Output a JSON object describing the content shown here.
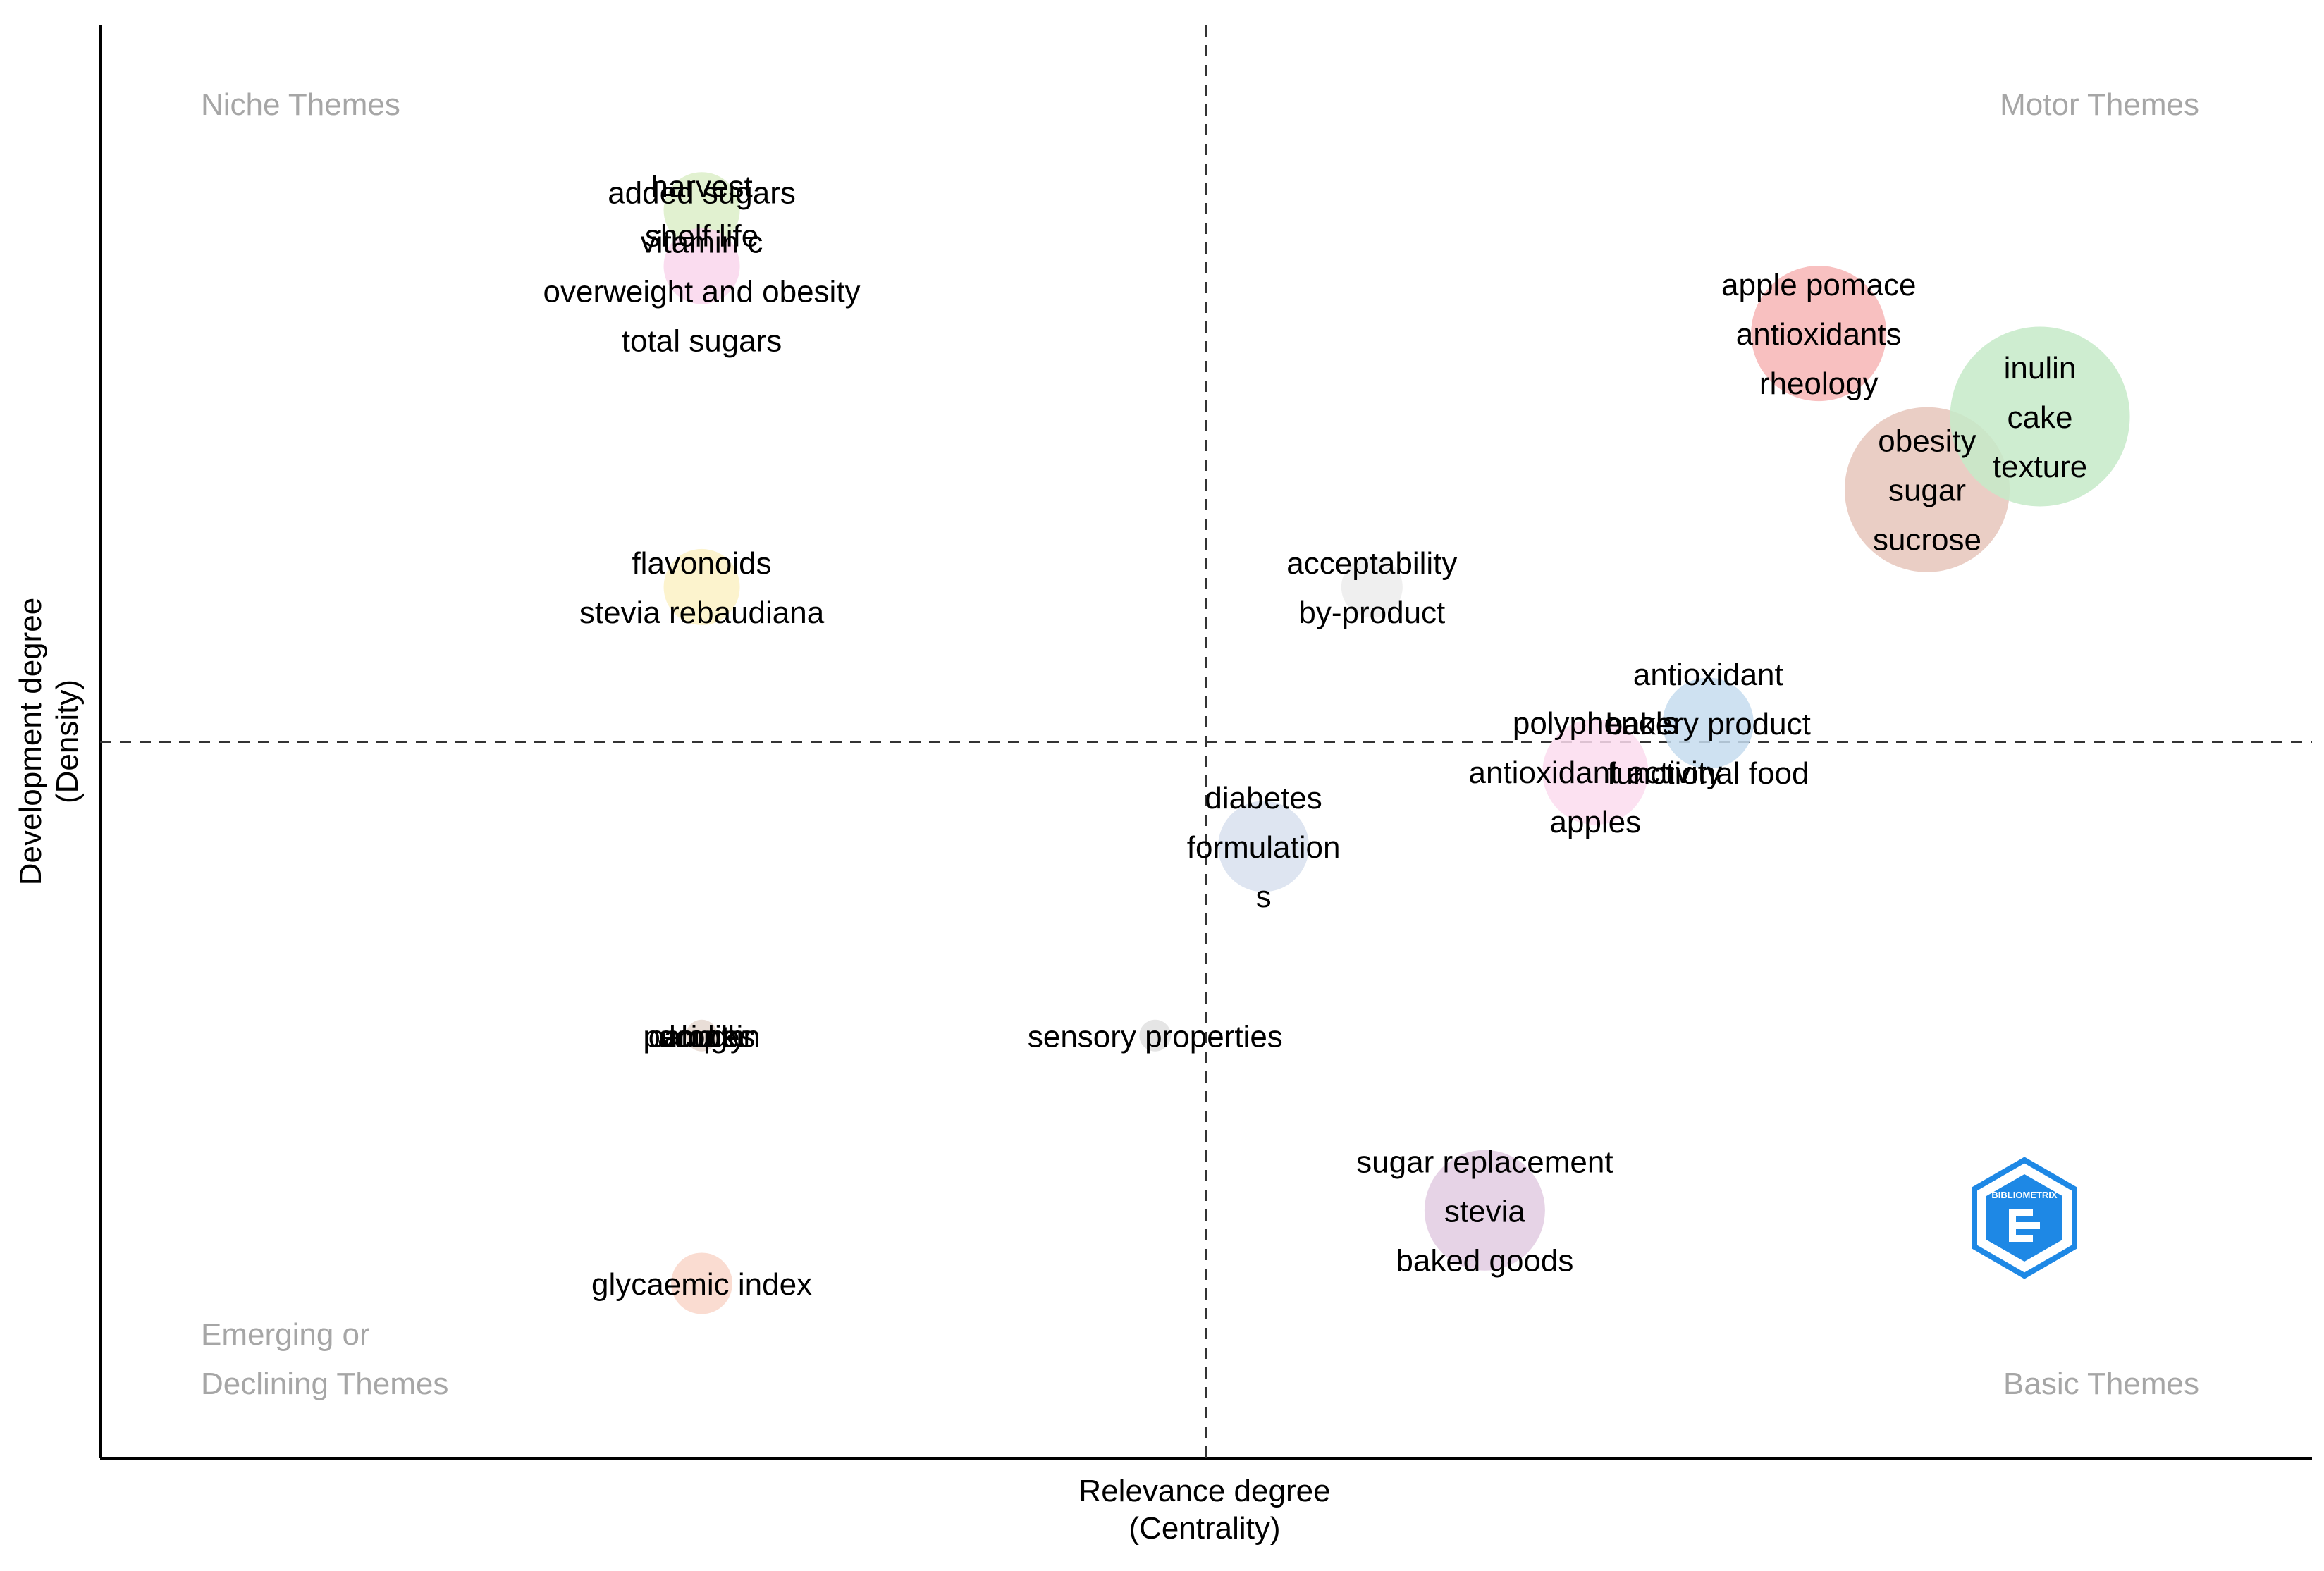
{
  "chart_data": {
    "type": "scatter",
    "subtype": "thematic-map-bubble",
    "xlabel": "Relevance degree",
    "xlabel_sub": "(Centrality)",
    "ylabel": "Development degree",
    "ylabel_sub": "(Density)",
    "xlim": [
      0,
      100
    ],
    "ylim": [
      0,
      100
    ],
    "x_divider": 50,
    "y_divider": 50,
    "grid": false,
    "quadrant_labels": {
      "top_left": [
        "Niche Themes"
      ],
      "top_right": [
        "Motor Themes"
      ],
      "bottom_left": [
        "Emerging or",
        "Declining Themes"
      ],
      "bottom_right": [
        "Basic Themes"
      ]
    },
    "logo_text": "BIBLIOMETRIX",
    "clusters": [
      {
        "x": 27.2,
        "y": 87.1,
        "size": 4,
        "color": "#dcefc8",
        "labels": [
          "harvest",
          "shelf life"
        ]
      },
      {
        "x": 27.2,
        "y": 83.2,
        "size": 4,
        "color": "#f9d6ec",
        "labels": [
          "added sugars",
          "vitamin c",
          "overweight and obesity",
          "total sugars"
        ]
      },
      {
        "x": 27.2,
        "y": 60.8,
        "size": 4,
        "color": "#fbf1c4",
        "labels": [
          "flavonoids",
          "stevia rebaudiana"
        ]
      },
      {
        "x": 27.2,
        "y": 29.5,
        "size": 1,
        "color": "#e5d8d0",
        "labels": [
          "calories",
          "acidity",
          "dough",
          "pumpkin"
        ]
      },
      {
        "x": 27.2,
        "y": 12.2,
        "size": 3,
        "color": "#f9d6c9",
        "labels": [
          "glycaemic index"
        ]
      },
      {
        "x": 47.7,
        "y": 29.5,
        "size": 1,
        "color": "#e0e0e0",
        "labels": [
          "sensory properties"
        ]
      },
      {
        "x": 52.6,
        "y": 42.7,
        "size": 5,
        "color": "#d8e1ef",
        "labels": [
          "diabetes",
          "formulation",
          "s"
        ]
      },
      {
        "x": 57.5,
        "y": 60.8,
        "size": 3,
        "color": "#ececec",
        "labels": [
          "acceptability",
          "by-product"
        ]
      },
      {
        "x": 62.6,
        "y": 17.3,
        "size": 7,
        "color": "#e2cbe2",
        "labels": [
          "sugar replacement",
          "stevia",
          "baked goods"
        ]
      },
      {
        "x": 67.6,
        "y": 47.9,
        "size": 6,
        "color": "#fcdcef",
        "labels": [
          "polyphenols",
          "antioxidant activity",
          "apples"
        ]
      },
      {
        "x": 72.7,
        "y": 51.3,
        "size": 5,
        "color": "#c6dcef",
        "labels": [
          "antioxidant",
          "bakery product",
          "functional food"
        ]
      },
      {
        "x": 77.7,
        "y": 78.5,
        "size": 8,
        "color": "#f7b5b5",
        "labels": [
          "apple pomace",
          "antioxidants",
          "rheology"
        ]
      },
      {
        "x": 82.6,
        "y": 67.6,
        "size": 10,
        "color": "#e6c6bb",
        "labels": [
          "obesity",
          "sugar",
          "sucrose"
        ]
      },
      {
        "x": 87.7,
        "y": 72.7,
        "size": 11,
        "color": "#c6eac8",
        "labels": [
          "inulin",
          "cake",
          "texture"
        ]
      }
    ]
  }
}
